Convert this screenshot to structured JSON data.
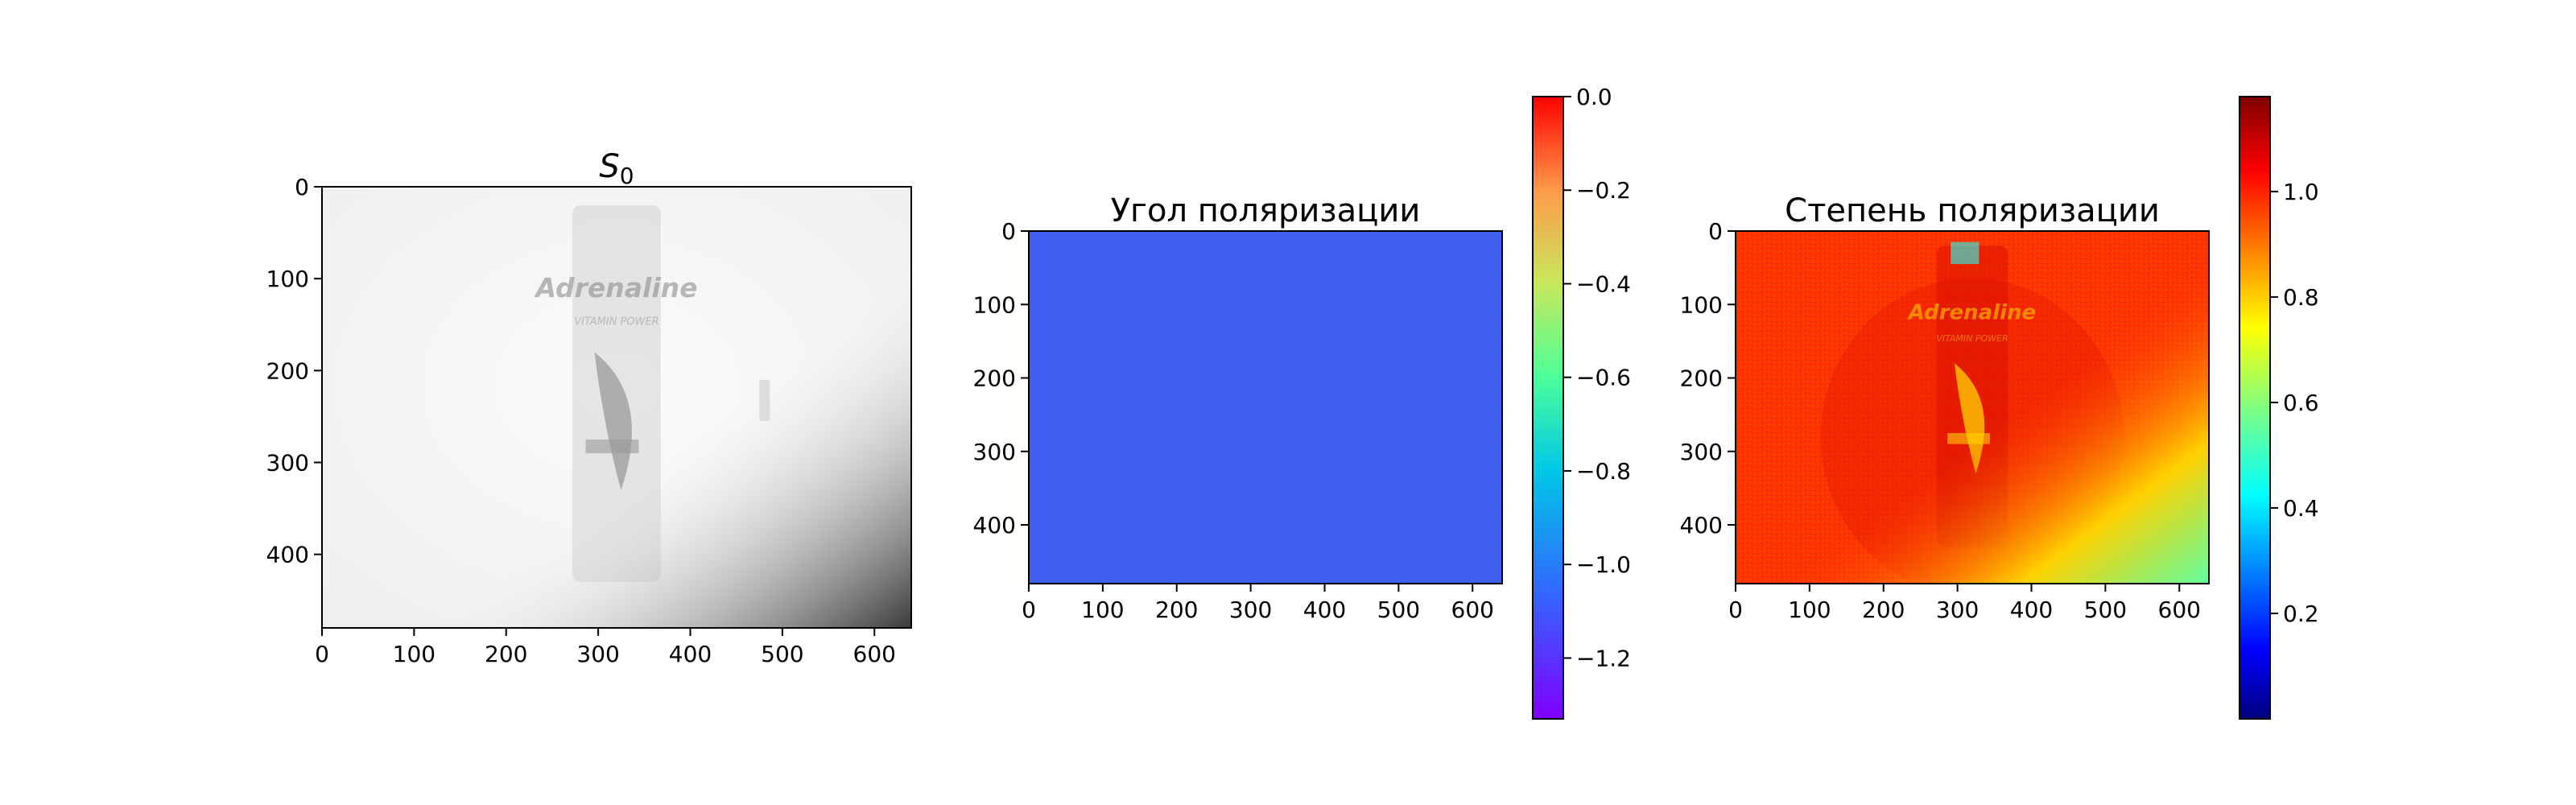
{
  "chart_data": [
    {
      "type": "heatmap",
      "title": "S",
      "title_subscript": "0",
      "colormap": "gray",
      "x_ticks": [
        0,
        100,
        200,
        300,
        400,
        500,
        600
      ],
      "y_ticks": [
        0,
        100,
        200,
        300,
        400
      ],
      "xlim": [
        0,
        640
      ],
      "ylim": [
        480,
        0
      ],
      "image_text": [
        "Adrenaline",
        "VITAMIN POWER"
      ],
      "colorbar": null
    },
    {
      "type": "heatmap",
      "title": "Угол поляризации",
      "colormap": "rainbow",
      "x_ticks": [
        0,
        100,
        200,
        300,
        400,
        500,
        600
      ],
      "y_ticks": [
        0,
        100,
        200,
        300,
        400
      ],
      "xlim": [
        0,
        640
      ],
      "ylim": [
        480,
        0
      ],
      "fill_color": "#3f5ff0",
      "colorbar": {
        "ticks": [
          "0.0",
          "−0.2",
          "−0.4",
          "−0.6",
          "−0.8",
          "−1.0",
          "−1.2"
        ],
        "tick_values": [
          0.0,
          -0.2,
          -0.4,
          -0.6,
          -0.8,
          -1.0,
          -1.2
        ],
        "range": [
          -1.33,
          0.0
        ]
      }
    },
    {
      "type": "heatmap",
      "title": "Степень поляризации",
      "colormap": "jet",
      "x_ticks": [
        0,
        100,
        200,
        300,
        400,
        500,
        600
      ],
      "y_ticks": [
        0,
        100,
        200,
        300,
        400
      ],
      "xlim": [
        0,
        640
      ],
      "ylim": [
        480,
        0
      ],
      "image_text": [
        "Adrenaline",
        "VITAMIN POWER"
      ],
      "colorbar": {
        "ticks": [
          "0.2",
          "0.4",
          "0.6",
          "0.8",
          "1.0"
        ],
        "tick_values": [
          0.2,
          0.4,
          0.6,
          0.8,
          1.0
        ],
        "range": [
          0.0,
          1.18
        ]
      }
    }
  ]
}
